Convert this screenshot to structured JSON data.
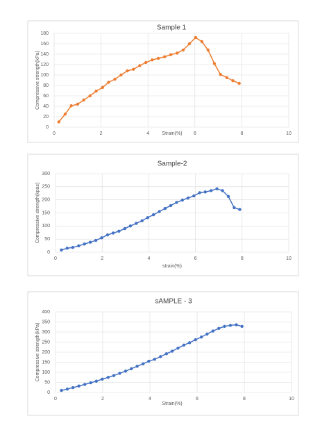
{
  "chart_data": [
    {
      "type": "line",
      "title": "Sample 1",
      "x_label": "Strain(%)",
      "y_label": "Compressive strength(kPa)",
      "xlim": [
        0,
        10
      ],
      "xticks": [
        0,
        2,
        4,
        6,
        8,
        10
      ],
      "ylim": [
        0,
        180
      ],
      "yticks": [
        0,
        20,
        40,
        60,
        80,
        100,
        120,
        140,
        160,
        180
      ],
      "grid": true,
      "series": [
        {
          "name": "Sample 1",
          "color": "#ed7d31",
          "x": [
            0.2,
            0.47,
            0.73,
            1.0,
            1.26,
            1.53,
            1.79,
            2.06,
            2.32,
            2.59,
            2.85,
            3.12,
            3.38,
            3.65,
            3.91,
            4.18,
            4.44,
            4.71,
            4.97,
            5.24,
            5.5,
            5.77,
            6.03,
            6.3,
            6.56,
            6.83,
            7.09,
            7.36,
            7.62,
            7.89
          ],
          "values": [
            10,
            25,
            41,
            44,
            52,
            60,
            69,
            76,
            86,
            92,
            100,
            108,
            111,
            118,
            124,
            129,
            132,
            135,
            139,
            142,
            148,
            160,
            172,
            164,
            148,
            122,
            101,
            95,
            89,
            84
          ]
        }
      ]
    },
    {
      "type": "line",
      "title": "Sample-2",
      "x_label": "strain(%)",
      "y_label": "Compressive strength(kpas)",
      "xlim": [
        0,
        10
      ],
      "xticks": [
        0,
        2,
        4,
        6,
        8,
        10
      ],
      "ylim": [
        0,
        300
      ],
      "yticks": [
        0,
        50,
        100,
        150,
        200,
        250,
        300
      ],
      "grid": true,
      "series": [
        {
          "name": "Sample-2",
          "color": "#4472c4",
          "x": [
            0.25,
            0.5,
            0.74,
            0.99,
            1.24,
            1.49,
            1.73,
            1.98,
            2.23,
            2.47,
            2.72,
            2.97,
            3.21,
            3.46,
            3.71,
            3.95,
            4.2,
            4.45,
            4.7,
            4.94,
            5.19,
            5.44,
            5.68,
            5.93,
            6.18,
            6.42,
            6.67,
            6.92,
            7.16,
            7.41,
            7.66,
            7.9
          ],
          "values": [
            8,
            15,
            18,
            24,
            31,
            38,
            45,
            55,
            66,
            73,
            80,
            90,
            100,
            110,
            120,
            132,
            143,
            155,
            167,
            178,
            190,
            199,
            207,
            215,
            227,
            230,
            235,
            242,
            235,
            213,
            170,
            163
          ]
        }
      ]
    },
    {
      "type": "line",
      "title": "sAMPLE - 3",
      "x_label": "Strain(%)",
      "y_label": "Compressive strength(kPa)",
      "xlim": [
        0,
        10
      ],
      "xticks": [
        0,
        2,
        4,
        6,
        8,
        10
      ],
      "ylim": [
        0,
        400
      ],
      "yticks": [
        0,
        50,
        100,
        150,
        200,
        250,
        300,
        350,
        400
      ],
      "grid": true,
      "series": [
        {
          "name": "sAMPLE - 3",
          "color": "#4472c4",
          "x": [
            0.25,
            0.5,
            0.74,
            0.99,
            1.24,
            1.49,
            1.73,
            1.98,
            2.23,
            2.47,
            2.72,
            2.97,
            3.21,
            3.46,
            3.71,
            3.95,
            4.2,
            4.45,
            4.7,
            4.94,
            5.19,
            5.44,
            5.68,
            5.93,
            6.18,
            6.42,
            6.67,
            6.92,
            7.16,
            7.41,
            7.66,
            7.9
          ],
          "values": [
            10,
            17,
            24,
            32,
            40,
            48,
            56,
            66,
            75,
            84,
            95,
            106,
            118,
            130,
            142,
            155,
            165,
            178,
            192,
            205,
            220,
            235,
            247,
            262,
            275,
            290,
            305,
            318,
            328,
            333,
            336,
            328
          ]
        }
      ]
    }
  ]
}
